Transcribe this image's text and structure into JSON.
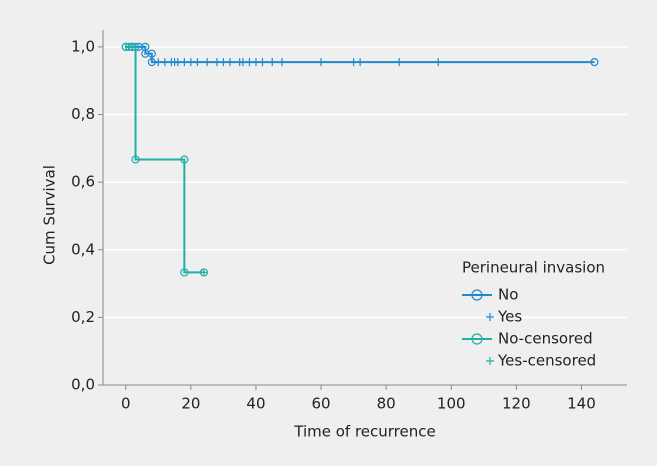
{
  "chart_data": {
    "type": "survival",
    "x_label": "Time of recurrence",
    "y_label": "Cum Survival",
    "legend_title": "Perineural invasion",
    "xlim": [
      -7,
      154
    ],
    "ylim": [
      0,
      1.05
    ],
    "xticks": [
      0,
      20,
      40,
      60,
      80,
      100,
      120,
      140
    ],
    "yticks": [
      {
        "value": 0,
        "label": "0,0"
      },
      {
        "value": 0.2,
        "label": "0,2"
      },
      {
        "value": 0.4,
        "label": "0,4"
      },
      {
        "value": 0.6,
        "label": "0,6"
      },
      {
        "value": 0.8,
        "label": "0,8"
      },
      {
        "value": 1,
        "label": "1,0"
      }
    ],
    "grid": true,
    "series": [
      {
        "name": "No",
        "color": "#1f8ad0",
        "mark": "line",
        "x": [
          0,
          2,
          4,
          6,
          6,
          8,
          8,
          144
        ],
        "values": [
          1,
          1,
          1,
          1,
          0.98,
          0.98,
          0.955,
          0.955
        ]
      },
      {
        "name": "Yes",
        "color": "#1f8ad0",
        "mark": "plus",
        "x": [
          10,
          12,
          14,
          15,
          16,
          18,
          20,
          22,
          25,
          28,
          30,
          32,
          35,
          36,
          38,
          40,
          42,
          45,
          48,
          60,
          70,
          72,
          84,
          96
        ],
        "values": [
          0.955,
          0.955,
          0.955,
          0.955,
          0.955,
          0.955,
          0.955,
          0.955,
          0.955,
          0.955,
          0.955,
          0.955,
          0.955,
          0.955,
          0.955,
          0.955,
          0.955,
          0.955,
          0.955,
          0.955,
          0.955,
          0.955,
          0.955,
          0.955
        ]
      },
      {
        "name": "No-censored",
        "color": "#1fb0a6",
        "mark": "line",
        "x": [
          0,
          1,
          3,
          3,
          18,
          18,
          24
        ],
        "values": [
          1,
          1,
          1,
          0.667,
          0.667,
          0.333,
          0.333
        ]
      },
      {
        "name": "Yes-censored",
        "color": "#1fb0a6",
        "mark": "plus",
        "x": [
          24
        ],
        "values": [
          0.333
        ]
      }
    ]
  }
}
